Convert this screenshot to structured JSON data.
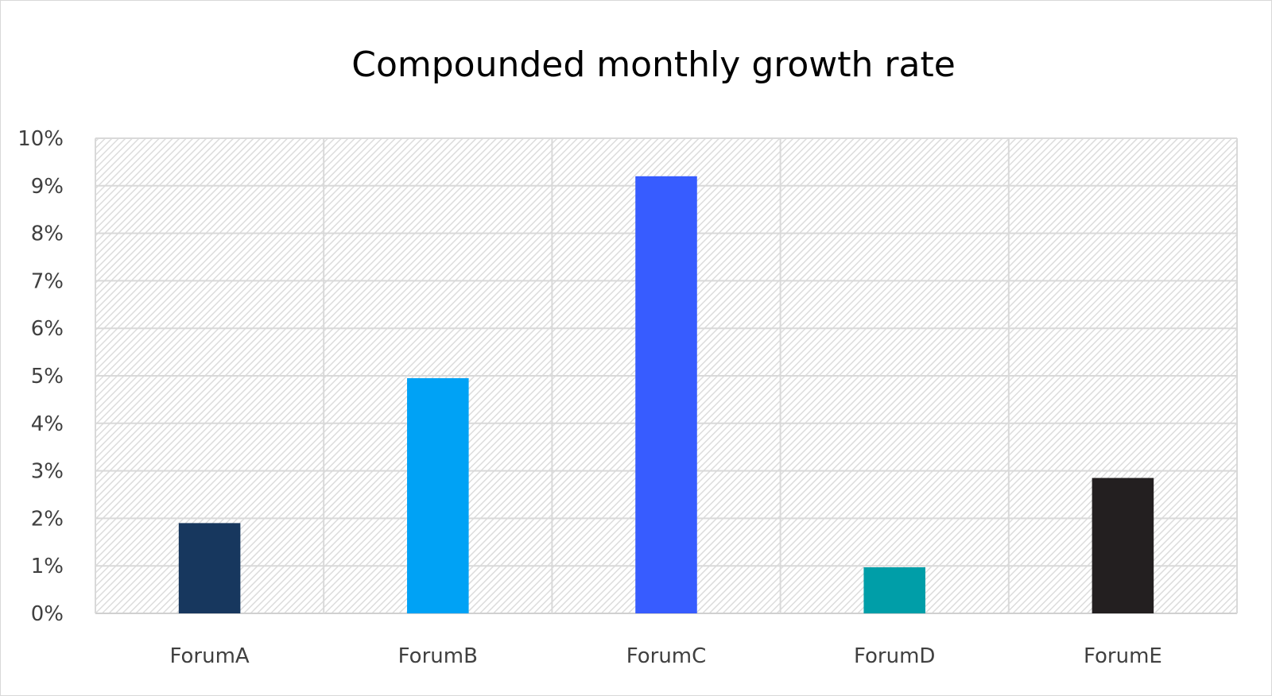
{
  "chart_data": {
    "type": "bar",
    "title": "Compounded monthly growth rate",
    "categories": [
      "ForumA",
      "ForumB",
      "ForumC",
      "ForumD",
      "ForumE"
    ],
    "values": [
      1.9,
      4.95,
      9.2,
      0.97,
      2.85
    ],
    "colors": [
      "#17375e",
      "#00a2f5",
      "#375cff",
      "#009ea8",
      "#231f20"
    ],
    "value_unit": "%",
    "ylim": [
      0,
      10
    ],
    "yticks": [
      "0%",
      "1%",
      "2%",
      "3%",
      "4%",
      "5%",
      "6%",
      "7%",
      "8%",
      "9%",
      "10%"
    ],
    "xlabel": "",
    "ylabel": "",
    "grid": true,
    "legend": "none",
    "plot_background": "hatched light gray"
  }
}
